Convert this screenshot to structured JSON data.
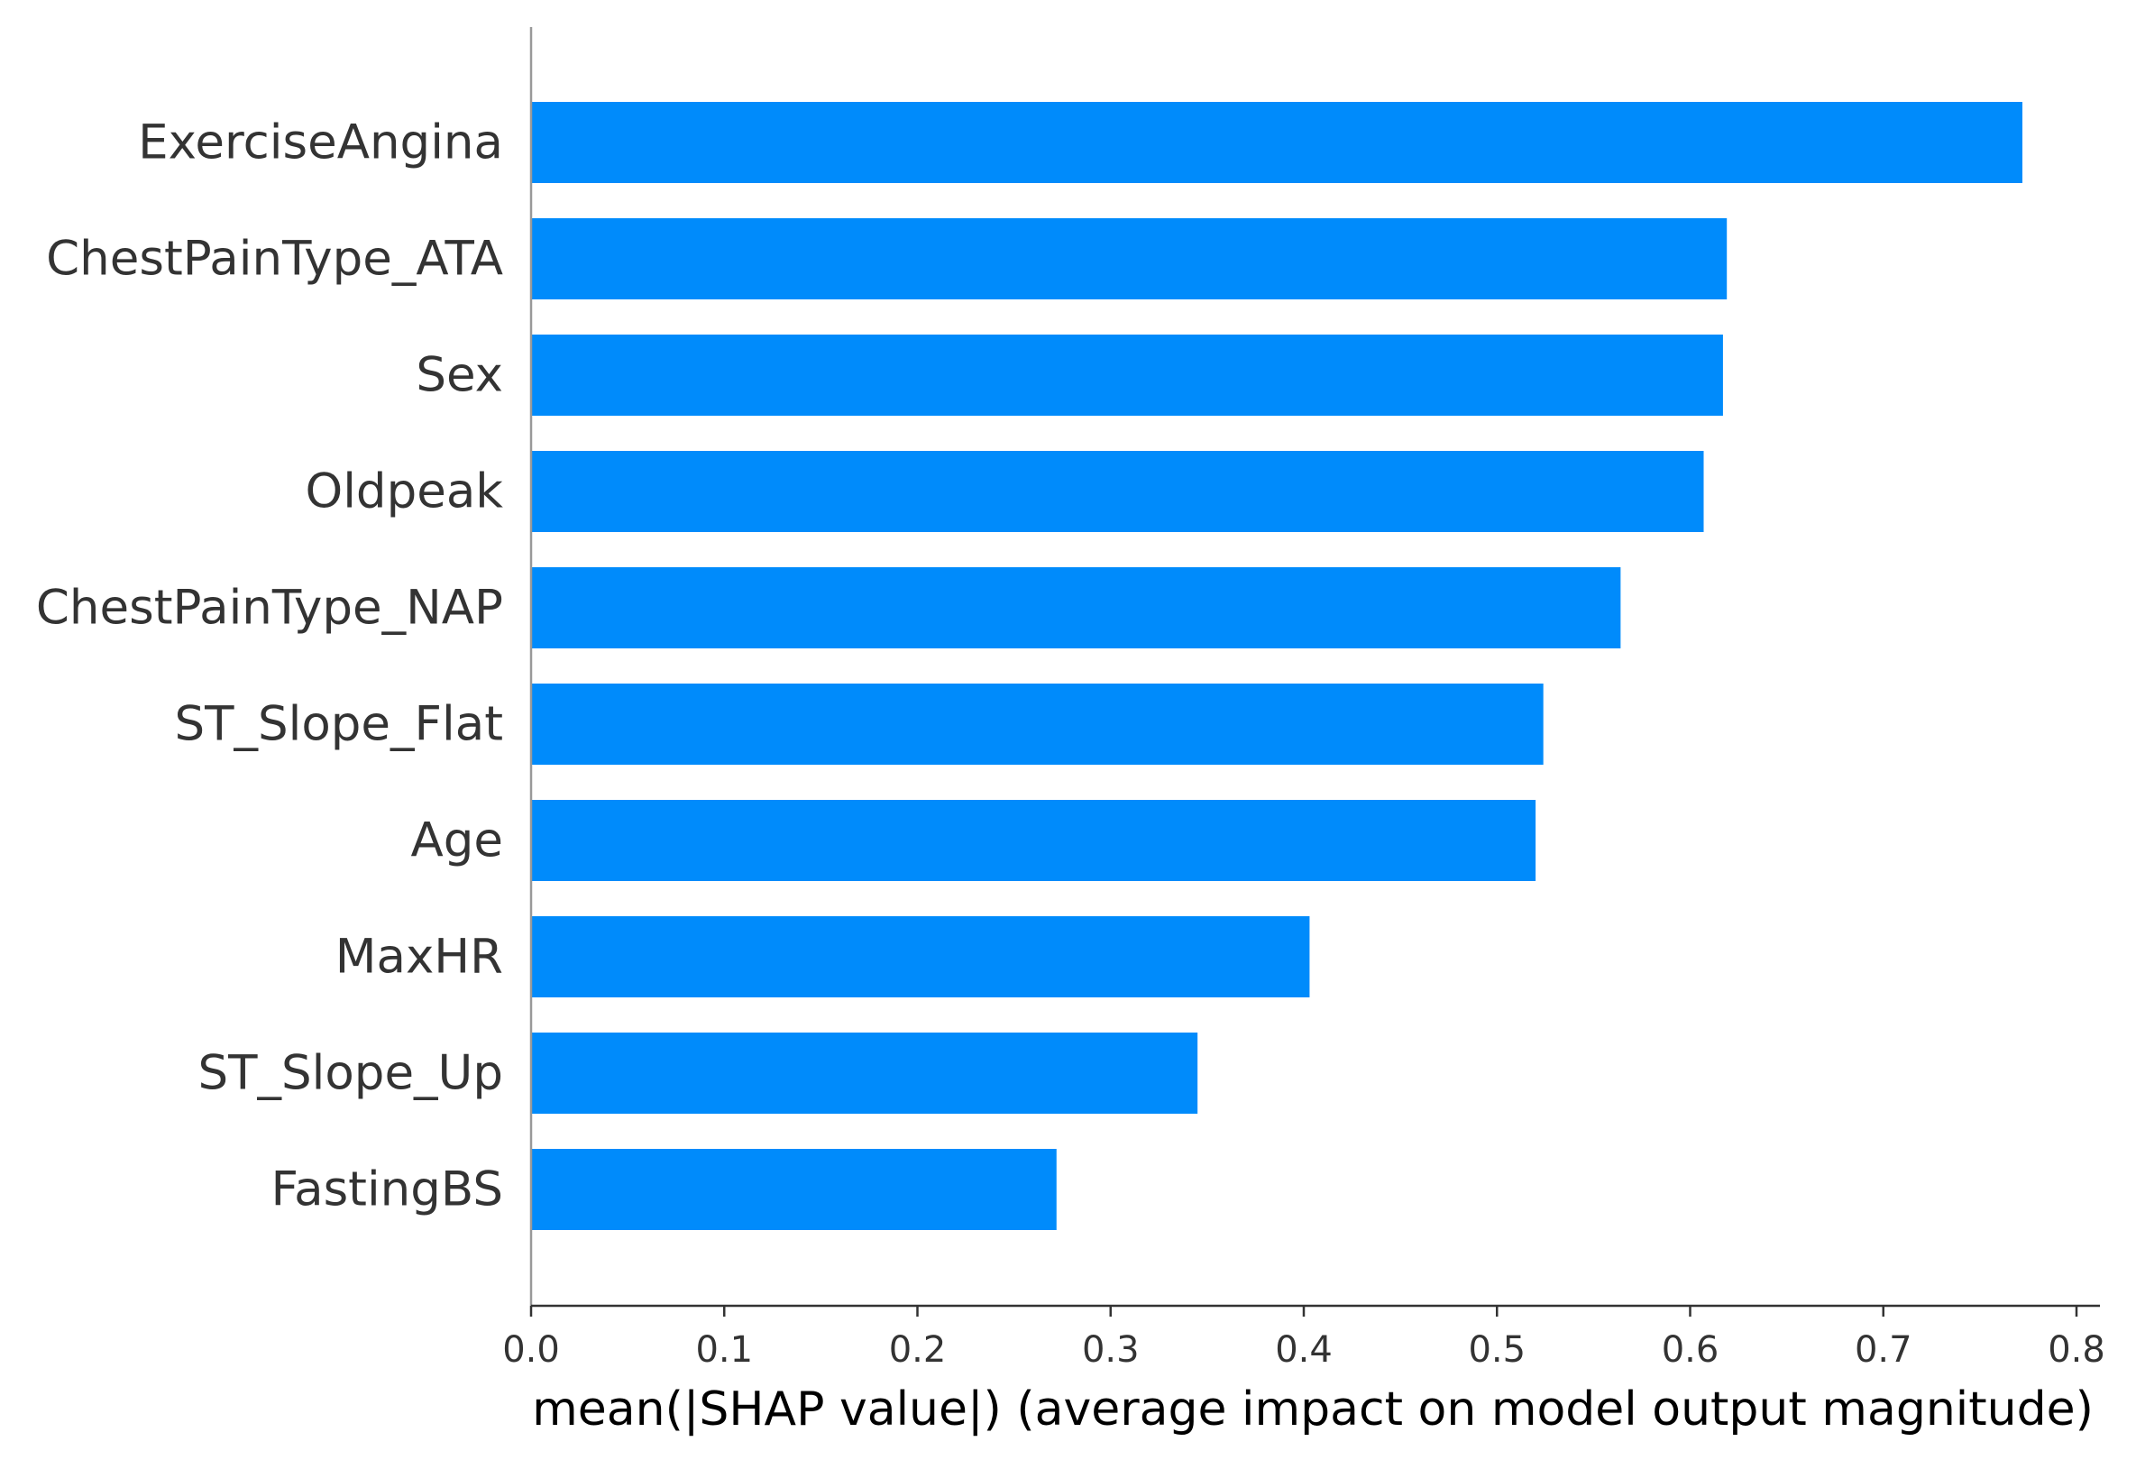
{
  "chart_data": {
    "type": "bar",
    "orientation": "horizontal",
    "categories": [
      "ExerciseAngina",
      "ChestPainType_ATA",
      "Sex",
      "Oldpeak",
      "ChestPainType_NAP",
      "ST_Slope_Flat",
      "Age",
      "MaxHR",
      "ST_Slope_Up",
      "FastingBS"
    ],
    "values": [
      0.772,
      0.619,
      0.617,
      0.607,
      0.564,
      0.524,
      0.52,
      0.403,
      0.345,
      0.272
    ],
    "xlabel": "mean(|SHAP value|) (average impact on model output magnitude)",
    "ylabel": "",
    "xlim": [
      0,
      0.81
    ],
    "xticks": [
      0.0,
      0.1,
      0.2,
      0.3,
      0.4,
      0.5,
      0.6,
      0.7,
      0.8
    ],
    "xtick_labels": [
      "0.0",
      "0.1",
      "0.2",
      "0.3",
      "0.4",
      "0.5",
      "0.6",
      "0.7",
      "0.8"
    ],
    "bar_color": "#008bfb",
    "axis_color": "#333333",
    "grid": false,
    "legend": false
  }
}
